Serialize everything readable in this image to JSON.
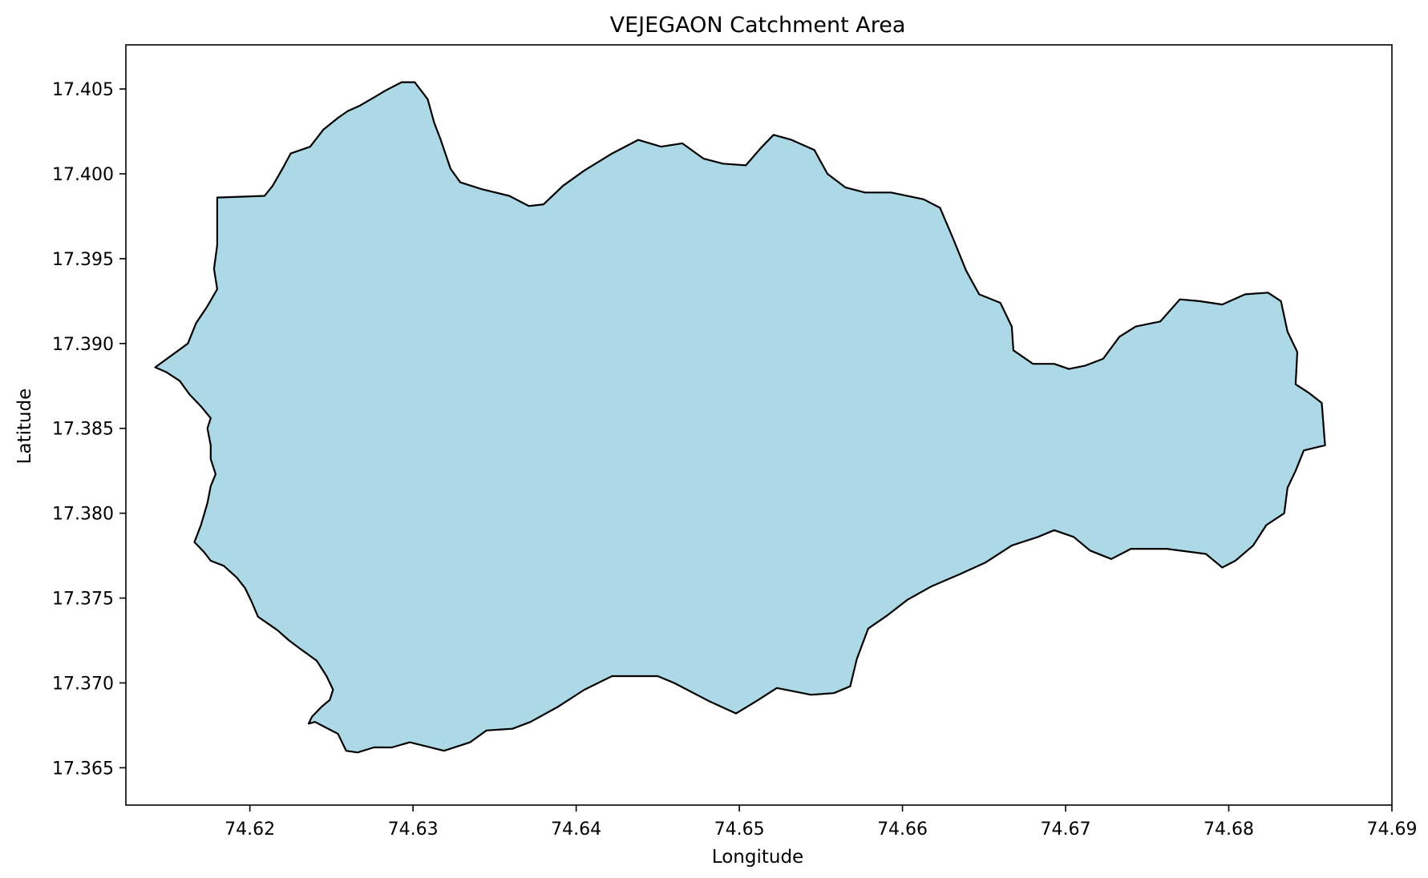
{
  "title": "VEJEGAON Catchment Area",
  "xlabel": "Longitude",
  "ylabel": "Latitude",
  "x_ticks": [
    "74.62",
    "74.63",
    "74.64",
    "74.65",
    "74.66",
    "74.67",
    "74.68",
    "74.69"
  ],
  "y_ticks": [
    "17.405",
    "17.400",
    "17.395",
    "17.390",
    "17.385",
    "17.380",
    "17.375",
    "17.370",
    "17.365"
  ],
  "colors": {
    "fill": "#add8e6",
    "edge": "#000000",
    "frame": "#000000",
    "background": "#ffffff"
  },
  "chart_data": {
    "type": "map-polygon",
    "title": "VEJEGAON Catchment Area",
    "xlabel": "Longitude",
    "ylabel": "Latitude",
    "xlim": [
      74.6124,
      74.69
    ],
    "ylim": [
      17.3628,
      17.4076
    ],
    "grid": false,
    "legend": "none",
    "polygon_lonlat": [
      [
        74.618,
        17.3986
      ],
      [
        74.6209,
        17.3987
      ],
      [
        74.6214,
        17.3993
      ],
      [
        74.622,
        17.4003
      ],
      [
        74.6225,
        17.4012
      ],
      [
        74.6237,
        17.4016
      ],
      [
        74.6245,
        17.4026
      ],
      [
        74.6254,
        17.4033
      ],
      [
        74.626,
        17.4037
      ],
      [
        74.6267,
        17.404
      ],
      [
        74.6276,
        17.4045
      ],
      [
        74.6283,
        17.4049
      ],
      [
        74.6293,
        17.4054
      ],
      [
        74.6301,
        17.4054
      ],
      [
        74.6309,
        17.4044
      ],
      [
        74.6313,
        17.403
      ],
      [
        74.6317,
        17.402
      ],
      [
        74.6323,
        17.4003
      ],
      [
        74.6329,
        17.3995
      ],
      [
        74.6342,
        17.3991
      ],
      [
        74.6359,
        17.3987
      ],
      [
        74.6371,
        17.3981
      ],
      [
        74.638,
        17.3982
      ],
      [
        74.6392,
        17.3993
      ],
      [
        74.6405,
        17.4002
      ],
      [
        74.6422,
        17.4012
      ],
      [
        74.6438,
        17.402
      ],
      [
        74.6452,
        17.4016
      ],
      [
        74.6465,
        17.4018
      ],
      [
        74.6478,
        17.4009
      ],
      [
        74.649,
        17.4006
      ],
      [
        74.6504,
        17.4005
      ],
      [
        74.6513,
        17.4015
      ],
      [
        74.6521,
        17.4023
      ],
      [
        74.6532,
        17.402
      ],
      [
        74.6546,
        17.4014
      ],
      [
        74.6554,
        17.4
      ],
      [
        74.6565,
        17.3992
      ],
      [
        74.6577,
        17.3989
      ],
      [
        74.6593,
        17.3989
      ],
      [
        74.6613,
        17.3985
      ],
      [
        74.6623,
        17.398
      ],
      [
        74.6631,
        17.3962
      ],
      [
        74.6639,
        17.3943
      ],
      [
        74.6647,
        17.3929
      ],
      [
        74.666,
        17.3924
      ],
      [
        74.6667,
        17.391
      ],
      [
        74.6668,
        17.3896
      ],
      [
        74.668,
        17.3888
      ],
      [
        74.6693,
        17.3888
      ],
      [
        74.6702,
        17.3885
      ],
      [
        74.6712,
        17.3887
      ],
      [
        74.6723,
        17.3891
      ],
      [
        74.6733,
        17.3904
      ],
      [
        74.6743,
        17.391
      ],
      [
        74.6758,
        17.3913
      ],
      [
        74.677,
        17.3926
      ],
      [
        74.6782,
        17.3925
      ],
      [
        74.6796,
        17.3923
      ],
      [
        74.681,
        17.3929
      ],
      [
        74.6824,
        17.393
      ],
      [
        74.6832,
        17.3925
      ],
      [
        74.6836,
        17.3907
      ],
      [
        74.6842,
        17.3895
      ],
      [
        74.6841,
        17.3876
      ],
      [
        74.6849,
        17.3871
      ],
      [
        74.6857,
        17.3865
      ],
      [
        74.6859,
        17.384
      ],
      [
        74.6846,
        17.3837
      ],
      [
        74.6841,
        17.3825
      ],
      [
        74.6836,
        17.3815
      ],
      [
        74.6834,
        17.38
      ],
      [
        74.6823,
        17.3793
      ],
      [
        74.6815,
        17.3781
      ],
      [
        74.6804,
        17.3772
      ],
      [
        74.6796,
        17.3768
      ],
      [
        74.6786,
        17.3776
      ],
      [
        74.6762,
        17.3779
      ],
      [
        74.674,
        17.3779
      ],
      [
        74.6728,
        17.3773
      ],
      [
        74.6715,
        17.3778
      ],
      [
        74.6705,
        17.3786
      ],
      [
        74.6693,
        17.379
      ],
      [
        74.6683,
        17.3786
      ],
      [
        74.6667,
        17.3781
      ],
      [
        74.6651,
        17.3771
      ],
      [
        74.6635,
        17.3764
      ],
      [
        74.6618,
        17.3757
      ],
      [
        74.6603,
        17.3749
      ],
      [
        74.6591,
        17.374
      ],
      [
        74.6579,
        17.3732
      ],
      [
        74.6572,
        17.3714
      ],
      [
        74.6568,
        17.3698
      ],
      [
        74.6558,
        17.3694
      ],
      [
        74.6544,
        17.3693
      ],
      [
        74.6523,
        17.3697
      ],
      [
        74.651,
        17.3689
      ],
      [
        74.6498,
        17.3682
      ],
      [
        74.6482,
        17.3689
      ],
      [
        74.646,
        17.37
      ],
      [
        74.645,
        17.3704
      ],
      [
        74.6434,
        17.3704
      ],
      [
        74.6422,
        17.3704
      ],
      [
        74.6405,
        17.3696
      ],
      [
        74.6389,
        17.3686
      ],
      [
        74.6372,
        17.3677
      ],
      [
        74.6361,
        17.3673
      ],
      [
        74.6345,
        17.3672
      ],
      [
        74.6335,
        17.3665
      ],
      [
        74.6319,
        17.366
      ],
      [
        74.6298,
        17.3665
      ],
      [
        74.6287,
        17.3662
      ],
      [
        74.6276,
        17.3662
      ],
      [
        74.6266,
        17.3659
      ],
      [
        74.6259,
        17.366
      ],
      [
        74.6254,
        17.367
      ],
      [
        74.6246,
        17.3674
      ],
      [
        74.624,
        17.3677
      ],
      [
        74.6236,
        17.3676
      ],
      [
        74.6238,
        17.368
      ],
      [
        74.6244,
        17.3686
      ],
      [
        74.6249,
        17.369
      ],
      [
        74.6251,
        17.3696
      ],
      [
        74.6247,
        17.3704
      ],
      [
        74.6241,
        17.3713
      ],
      [
        74.6231,
        17.372
      ],
      [
        74.6224,
        17.3725
      ],
      [
        74.6217,
        17.3731
      ],
      [
        74.6211,
        17.3735
      ],
      [
        74.6205,
        17.3739
      ],
      [
        74.6201,
        17.3748
      ],
      [
        74.6197,
        17.3756
      ],
      [
        74.6192,
        17.3762
      ],
      [
        74.6184,
        17.3769
      ],
      [
        74.6176,
        17.3772
      ],
      [
        74.6172,
        17.3777
      ],
      [
        74.6166,
        17.3783
      ],
      [
        74.617,
        17.3793
      ],
      [
        74.6174,
        17.3806
      ],
      [
        74.6176,
        17.3816
      ],
      [
        74.6179,
        17.3823
      ],
      [
        74.6176,
        17.3832
      ],
      [
        74.6176,
        17.384
      ],
      [
        74.6174,
        17.385
      ],
      [
        74.6176,
        17.3856
      ],
      [
        74.617,
        17.3863
      ],
      [
        74.6163,
        17.387
      ],
      [
        74.6157,
        17.3878
      ],
      [
        74.6149,
        17.3883
      ],
      [
        74.6142,
        17.3886
      ],
      [
        74.6162,
        17.39
      ],
      [
        74.6167,
        17.3912
      ],
      [
        74.6174,
        17.3922
      ],
      [
        74.618,
        17.3932
      ],
      [
        74.6178,
        17.3944
      ],
      [
        74.618,
        17.3958
      ],
      [
        74.618,
        17.3972
      ],
      [
        74.618,
        17.3986
      ]
    ]
  }
}
